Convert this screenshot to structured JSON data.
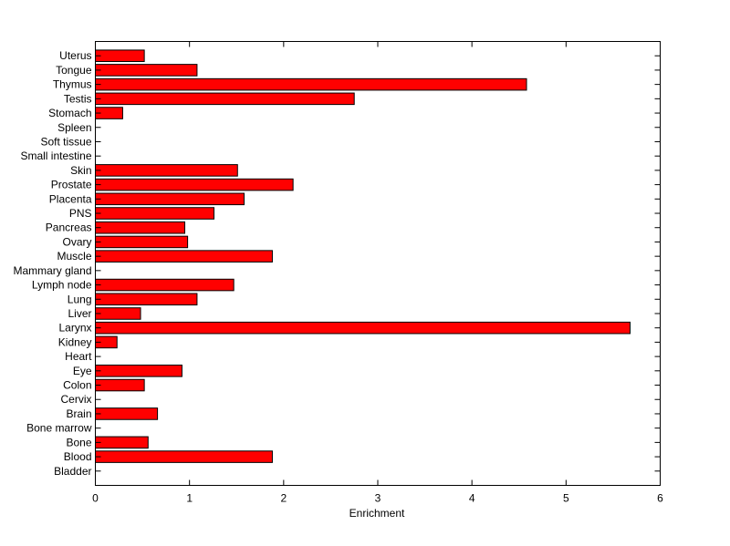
{
  "chart_data": {
    "type": "bar",
    "orientation": "horizontal",
    "title": "",
    "xlabel": "Enrichment",
    "ylabel": "",
    "xlim": [
      0,
      6
    ],
    "xticks": [
      0,
      1,
      2,
      3,
      4,
      5,
      6
    ],
    "grid": false,
    "legend": "none",
    "bar_color": "#ff0000",
    "edge_color": "#000000",
    "categories": [
      "Bladder",
      "Blood",
      "Bone",
      "Bone marrow",
      "Brain",
      "Cervix",
      "Colon",
      "Eye",
      "Heart",
      "Kidney",
      "Larynx",
      "Liver",
      "Lung",
      "Lymph node",
      "Mammary gland",
      "Muscle",
      "Ovary",
      "Pancreas",
      "PNS",
      "Placenta",
      "Prostate",
      "Skin",
      "Small intestine",
      "Soft tissue",
      "Spleen",
      "Stomach",
      "Testis",
      "Thymus",
      "Tongue",
      "Uterus"
    ],
    "values": [
      0,
      1.88,
      0.56,
      0,
      0.66,
      0,
      0.52,
      0.92,
      0,
      0.23,
      5.68,
      0.48,
      1.08,
      1.47,
      0,
      1.88,
      0.98,
      0.95,
      1.26,
      1.58,
      2.1,
      1.51,
      0,
      0,
      0,
      0.29,
      2.75,
      4.58,
      1.08,
      0.52
    ]
  }
}
